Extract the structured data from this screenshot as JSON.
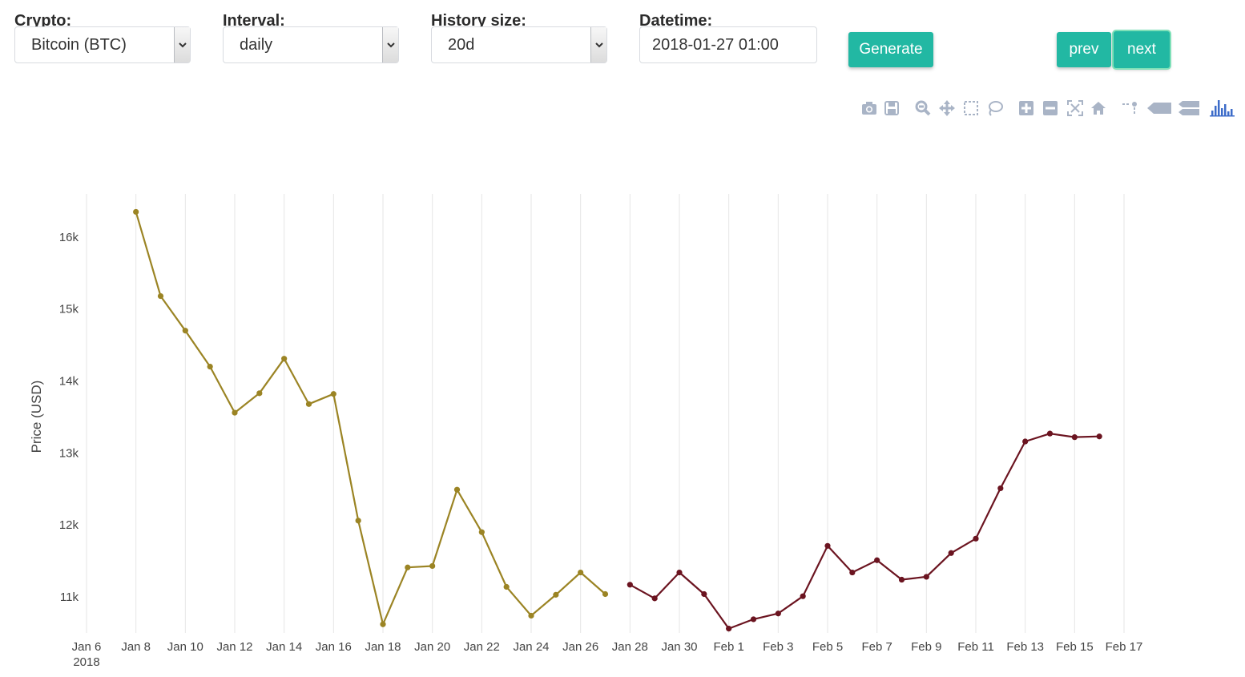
{
  "controls": {
    "crypto": {
      "label": "Crypto:",
      "value": "Bitcoin (BTC)"
    },
    "interval": {
      "label": "Interval:",
      "value": "daily"
    },
    "history": {
      "label": "History size:",
      "value": "20d"
    },
    "datetime": {
      "label": "Datetime:",
      "value": "2018-01-27 01:00"
    },
    "generate_label": "Generate",
    "prev_label": "prev",
    "next_label": "next",
    "accent_color": "#22b8a3"
  },
  "modebar": {
    "icons": [
      "camera-icon",
      "save-icon",
      "zoom-icon",
      "pan-icon",
      "box-select-icon",
      "lasso-icon",
      "zoom-in-icon",
      "zoom-out-icon",
      "autoscale-icon",
      "reset-axes-icon",
      "spike-lines-icon",
      "hover-closest-icon",
      "hover-compare-icon",
      "plotly-logo-icon"
    ]
  },
  "chart_data": {
    "type": "line",
    "xlabel": "",
    "ylabel": "Price (USD)",
    "xlim": [
      "2018-01-06",
      "2018-02-17"
    ],
    "ylim": [
      10500,
      16600
    ],
    "y_ticks": [
      11000,
      12000,
      13000,
      14000,
      15000,
      16000
    ],
    "y_tick_labels": [
      "11k",
      "12k",
      "13k",
      "14k",
      "15k",
      "16k"
    ],
    "x_ticks": [
      "2018-01-06",
      "2018-01-08",
      "2018-01-10",
      "2018-01-12",
      "2018-01-14",
      "2018-01-16",
      "2018-01-18",
      "2018-01-20",
      "2018-01-22",
      "2018-01-24",
      "2018-01-26",
      "2018-01-28",
      "2018-01-30",
      "2018-02-01",
      "2018-02-03",
      "2018-02-05",
      "2018-02-07",
      "2018-02-09",
      "2018-02-11",
      "2018-02-13",
      "2018-02-15",
      "2018-02-17"
    ],
    "x_tick_labels": [
      "Jan 6",
      "Jan 8",
      "Jan 10",
      "Jan 12",
      "Jan 14",
      "Jan 16",
      "Jan 18",
      "Jan 20",
      "Jan 22",
      "Jan 24",
      "Jan 26",
      "Jan 28",
      "Jan 30",
      "Feb 1",
      "Feb 3",
      "Feb 5",
      "Feb 7",
      "Feb 9",
      "Feb 11",
      "Feb 13",
      "Feb 15",
      "Feb 17"
    ],
    "x_year_label": "2018",
    "grid": "vertical",
    "series": [
      {
        "color": "#9b8424",
        "x": [
          "2018-01-08",
          "2018-01-09",
          "2018-01-10",
          "2018-01-11",
          "2018-01-12",
          "2018-01-13",
          "2018-01-14",
          "2018-01-15",
          "2018-01-16",
          "2018-01-17",
          "2018-01-18",
          "2018-01-19",
          "2018-01-20",
          "2018-01-21",
          "2018-01-22",
          "2018-01-23",
          "2018-01-24",
          "2018-01-25",
          "2018-01-26",
          "2018-01-27"
        ],
        "y": [
          16350,
          15180,
          14700,
          14200,
          13560,
          13830,
          14310,
          13680,
          13820,
          12060,
          10620,
          11410,
          11430,
          12490,
          11900,
          11140,
          10740,
          11030,
          11340,
          11040
        ]
      },
      {
        "color": "#6b1420",
        "x": [
          "2018-01-28",
          "2018-01-29",
          "2018-01-30",
          "2018-01-31",
          "2018-02-01",
          "2018-02-02",
          "2018-02-03",
          "2018-02-04",
          "2018-02-05",
          "2018-02-06",
          "2018-02-07",
          "2018-02-08",
          "2018-02-09",
          "2018-02-10",
          "2018-02-11",
          "2018-02-12",
          "2018-02-13",
          "2018-02-14",
          "2018-02-15",
          "2018-02-16"
        ],
        "y": [
          11170,
          10980,
          11340,
          11040,
          10560,
          10690,
          10770,
          11010,
          11710,
          11340,
          11510,
          11240,
          11280,
          11610,
          11810,
          12510,
          13160,
          13270,
          13220,
          13230
        ]
      }
    ]
  }
}
